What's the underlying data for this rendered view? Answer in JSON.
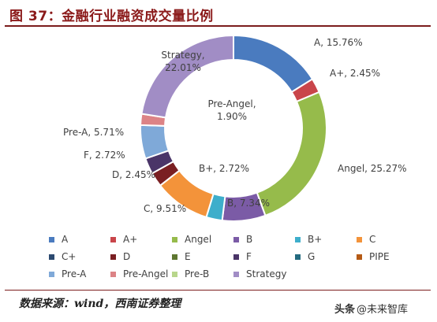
{
  "title": "图 37：金融行业融资成交量比例",
  "source": "数据来源：wind，西南证券整理",
  "watermark": {
    "logo": "头条",
    "text": "@未来智库"
  },
  "chart_data": {
    "type": "pie",
    "donut": true,
    "title": "图 37：金融行业融资成交量比例",
    "legend_position": "bottom",
    "categories": [
      "A",
      "A+",
      "Angel",
      "B",
      "B+",
      "C",
      "C+",
      "D",
      "E",
      "F",
      "G",
      "PIPE",
      "Pre-A",
      "Pre-Angel",
      "Pre-B",
      "Strategy"
    ],
    "values": [
      15.76,
      2.45,
      25.27,
      7.34,
      2.72,
      9.51,
      0,
      2.45,
      0,
      2.72,
      0,
      0,
      5.71,
      1.9,
      0,
      22.01
    ],
    "colors": [
      "#4a7bbf",
      "#c9454a",
      "#96bb4b",
      "#7b5ba6",
      "#3eaecb",
      "#f3933a",
      "#2c4a70",
      "#7a1f22",
      "#5e7730",
      "#4a3568",
      "#246b80",
      "#b55a15",
      "#7fa9d8",
      "#dc8386",
      "#b8d68c",
      "#a18dc5"
    ],
    "data_labels": [
      {
        "category": "A",
        "text": "A, 15.76%"
      },
      {
        "category": "A+",
        "text": "A+, 2.45%"
      },
      {
        "category": "Angel",
        "text": "Angel, 25.27%"
      },
      {
        "category": "B",
        "text": "B, 7.34%"
      },
      {
        "category": "B+",
        "text": "B+, 2.72%"
      },
      {
        "category": "C",
        "text": "C, 9.51%"
      },
      {
        "category": "D",
        "text": "D, 2.45%"
      },
      {
        "category": "F",
        "text": "F, 2.72%"
      },
      {
        "category": "Pre-A",
        "text": "Pre-A, 5.71%"
      },
      {
        "category": "Pre-Angel",
        "text": "Pre-Angel,|1.90%"
      },
      {
        "category": "Strategy",
        "text": "Strategy,|22.01%"
      }
    ]
  }
}
